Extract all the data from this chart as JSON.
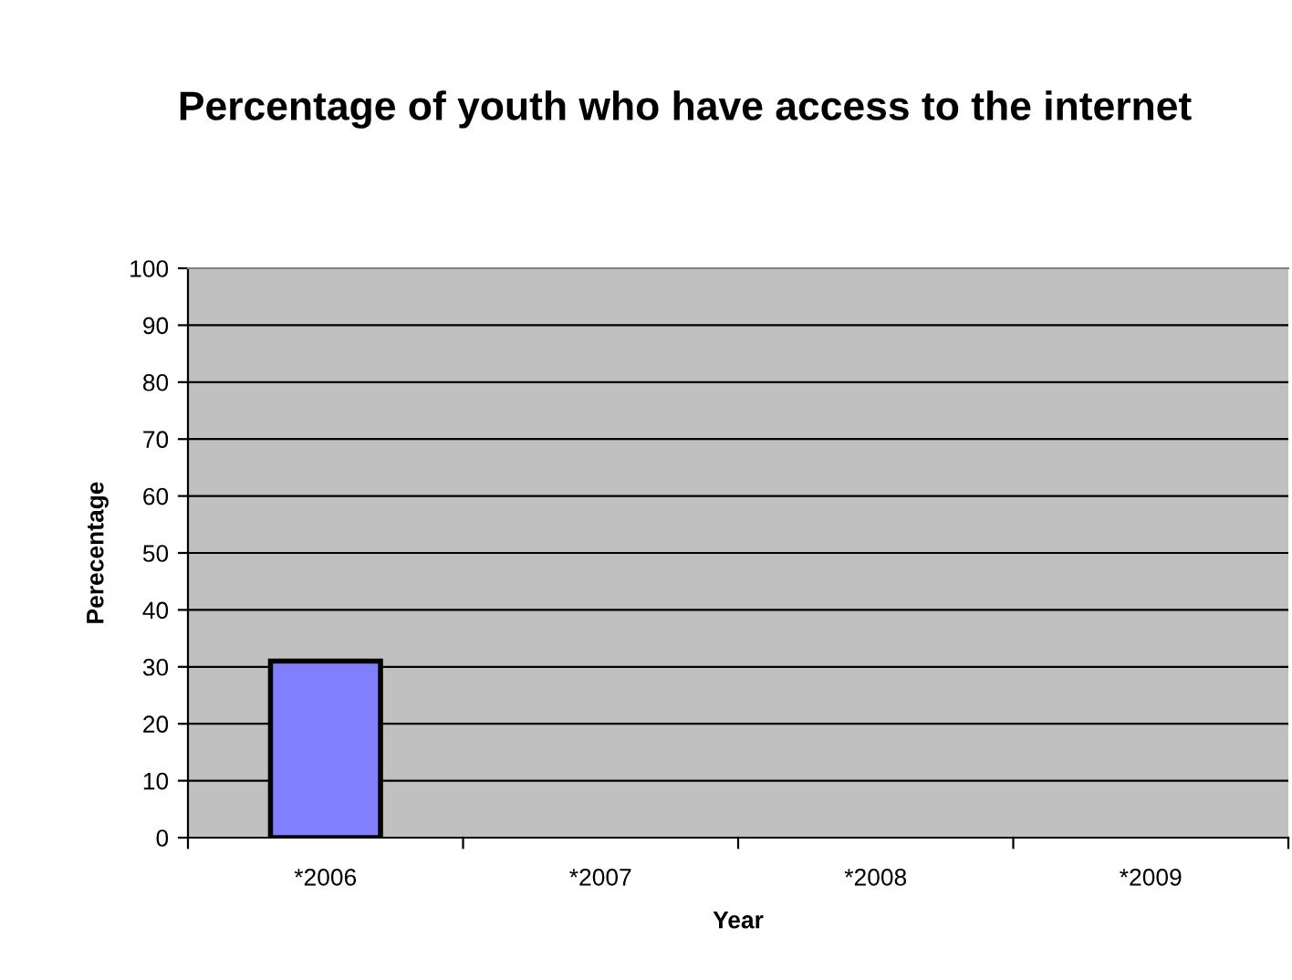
{
  "chart_data": {
    "type": "bar",
    "title": "Percentage of youth who have access to the internet",
    "xlabel": "Year",
    "ylabel": "Perecentage",
    "categories": [
      "*2006",
      "*2007",
      "*2008",
      "*2009"
    ],
    "values": [
      31,
      null,
      null,
      null
    ],
    "color": "#8080ff",
    "ylim": [
      0,
      100
    ],
    "yticks": [
      0,
      10,
      20,
      30,
      40,
      50,
      60,
      70,
      80,
      90,
      100
    ],
    "grid": "y",
    "legend": false
  }
}
